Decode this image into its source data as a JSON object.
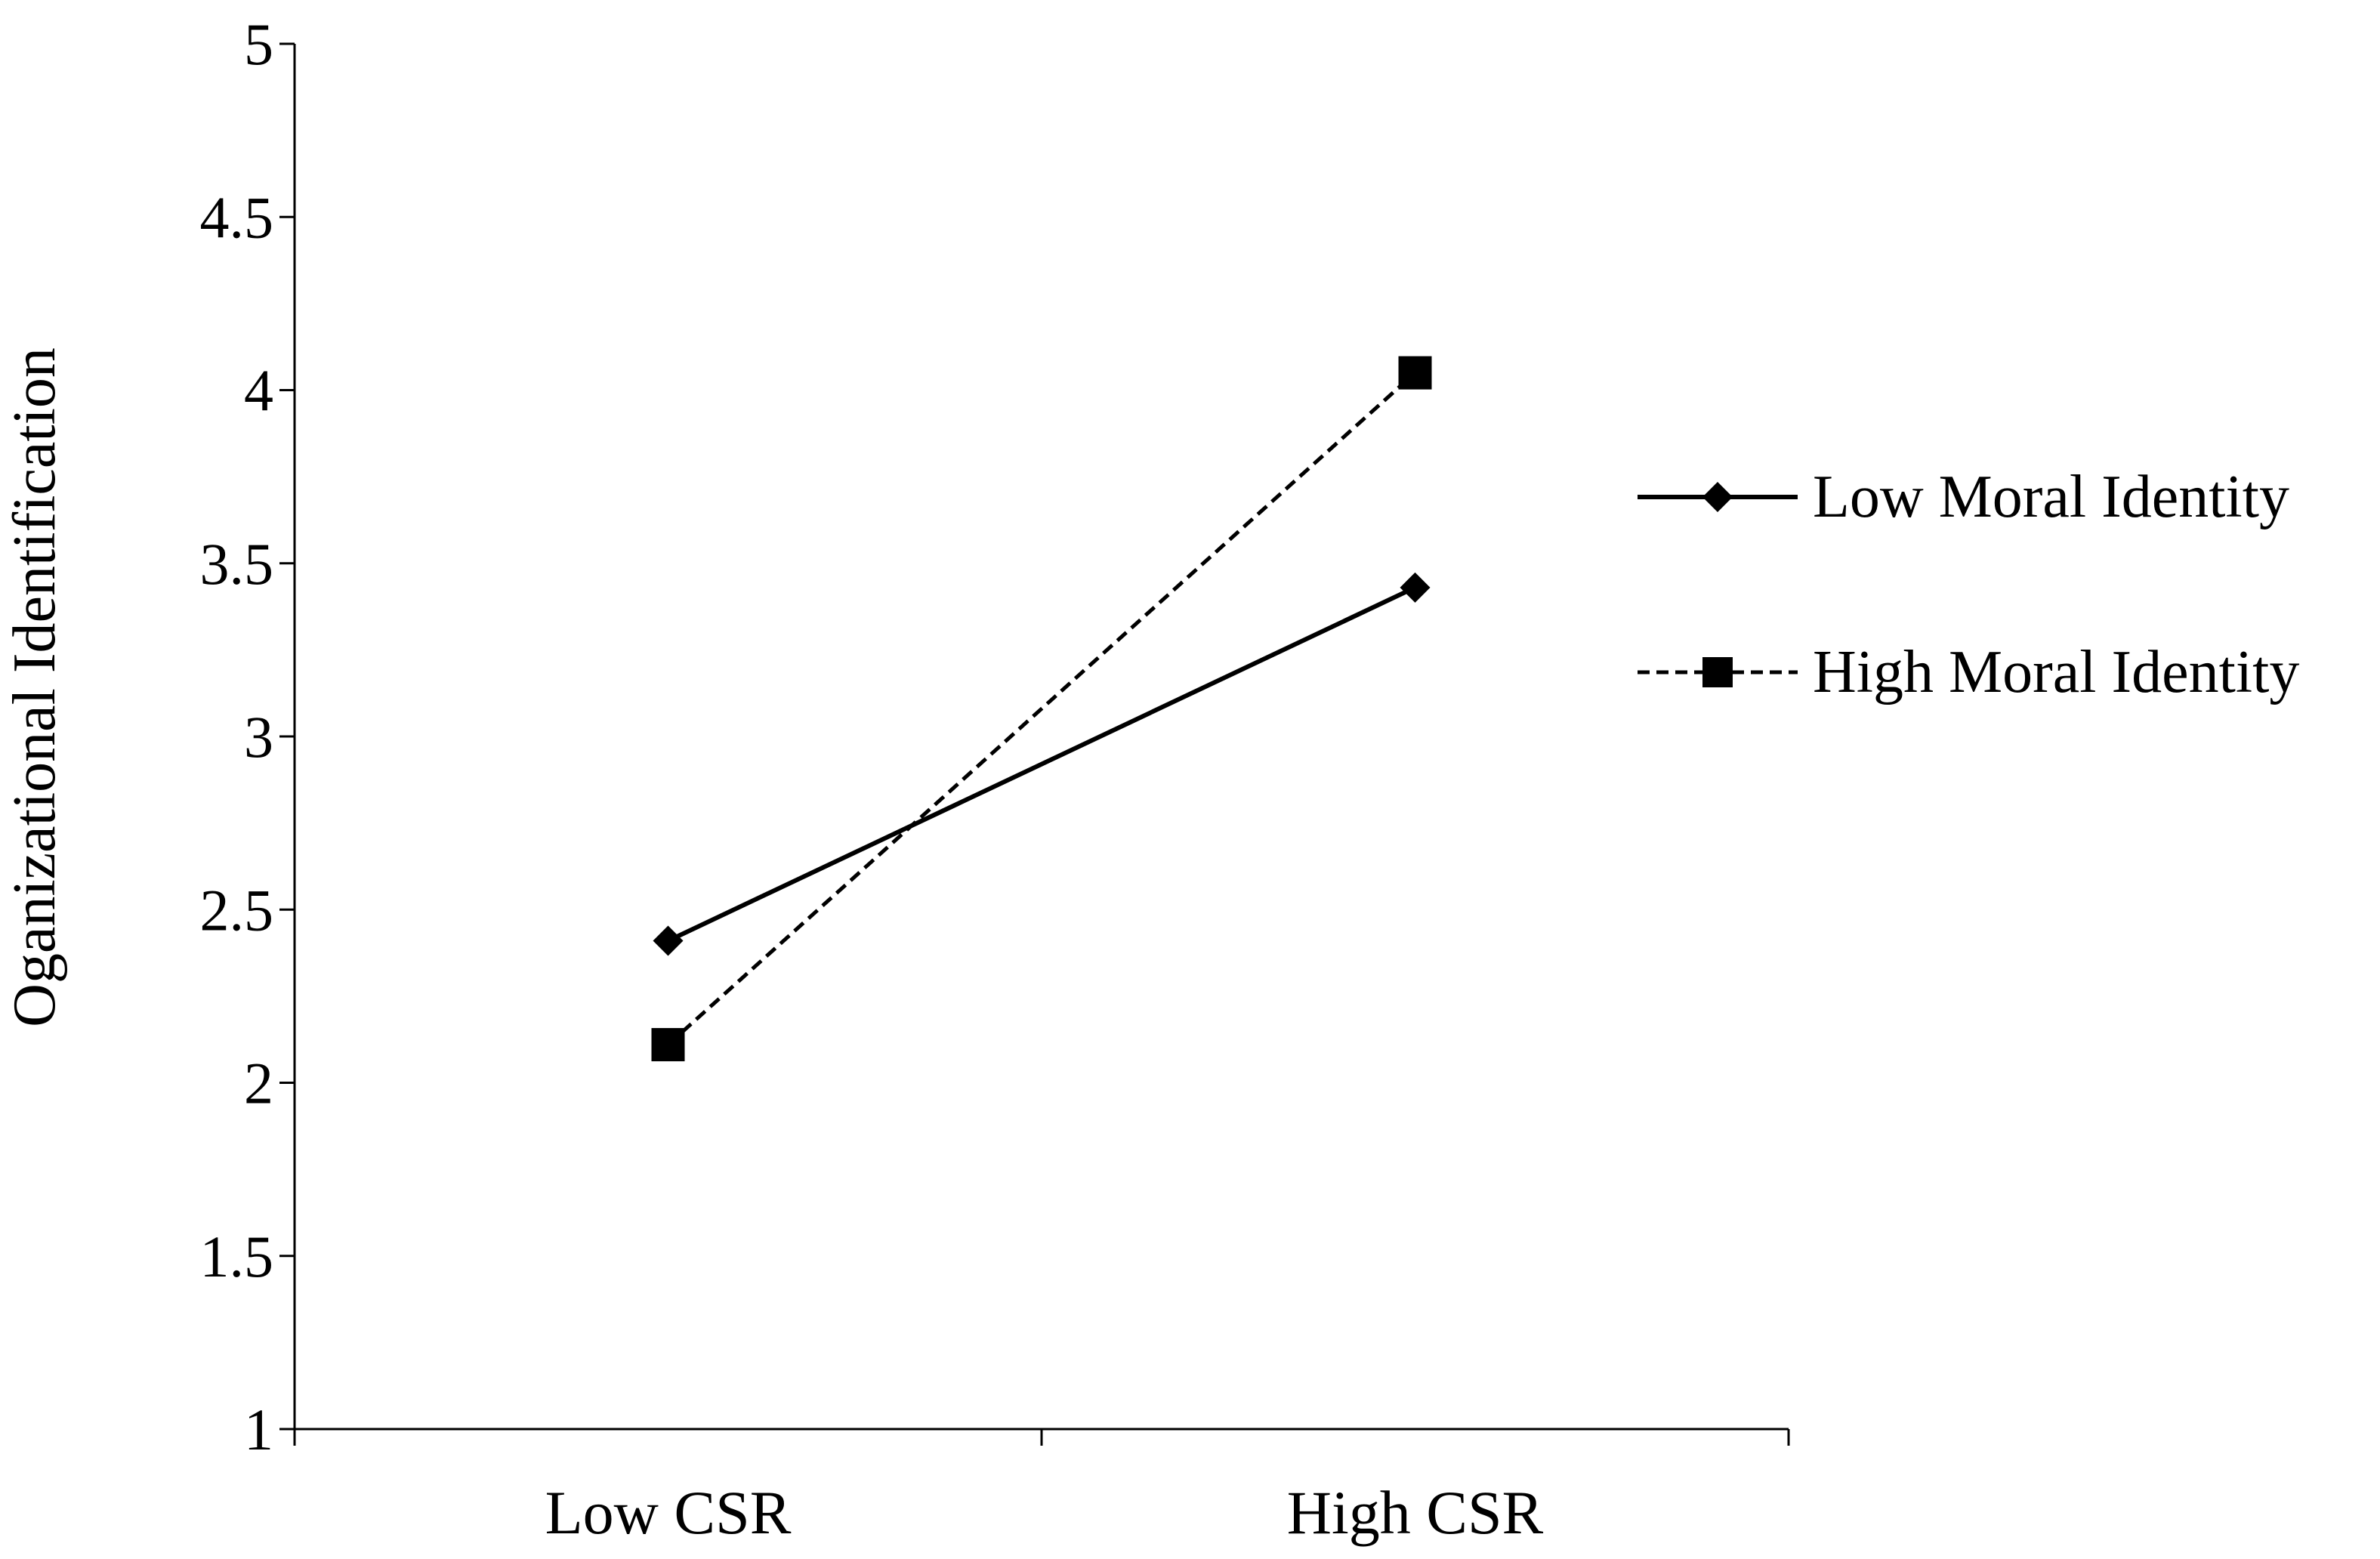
{
  "chart_data": {
    "type": "line",
    "title": "",
    "xlabel": "",
    "ylabel": "Oganizational Identification",
    "categories": [
      "Low CSR",
      "High CSR"
    ],
    "ylim": [
      1,
      5
    ],
    "yticks": [
      "1",
      "1.5",
      "2",
      "2.5",
      "3",
      "3.5",
      "4",
      "4.5",
      "5"
    ],
    "grid": false,
    "legend_position": "right",
    "series": [
      {
        "name": "Low Moral Identity",
        "values": [
          2.41,
          3.43
        ],
        "line_style": "solid",
        "marker": "diamond",
        "color": "#000000"
      },
      {
        "name": "High Moral Identity",
        "values": [
          2.11,
          4.05
        ],
        "line_style": "dashed",
        "marker": "square",
        "color": "#000000"
      }
    ]
  }
}
